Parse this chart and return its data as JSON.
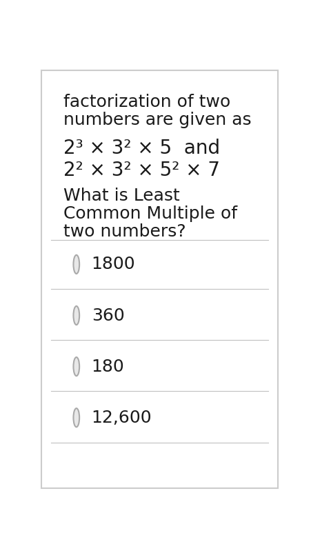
{
  "background_color": "#ffffff",
  "border_color": "#cccccc",
  "math_line1": "2³ × 3² × 5  and",
  "math_line2": "2² × 3² × 5² × 7",
  "options": [
    "1800",
    "360",
    "180",
    "12,600"
  ],
  "text_color": "#1a1a1a",
  "divider_color": "#c0c0c0",
  "circle_edge_color": "#aaaaaa",
  "circle_fill_color": "#e8e8e8",
  "font_size_question": 18,
  "font_size_math": 20,
  "font_size_options": 18
}
